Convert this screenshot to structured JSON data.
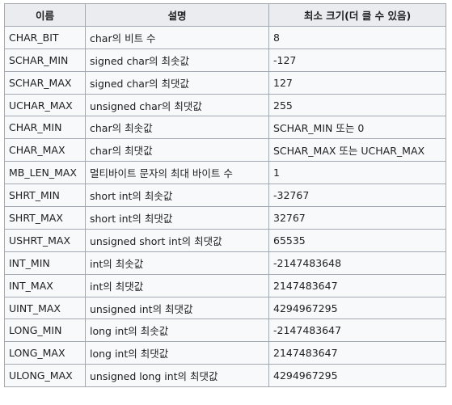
{
  "table": {
    "headers": [
      "이름",
      "설명",
      "최소 크기(더 클 수 있음)"
    ],
    "rows": [
      [
        "CHAR_BIT",
        "char의 비트 수",
        "8"
      ],
      [
        "SCHAR_MIN",
        "signed char의 최솟값",
        "-127"
      ],
      [
        "SCHAR_MAX",
        "signed char의 최댓값",
        "127"
      ],
      [
        "UCHAR_MAX",
        "unsigned char의 최댓값",
        "255"
      ],
      [
        "CHAR_MIN",
        "char의 최솟값",
        "SCHAR_MIN 또는 0"
      ],
      [
        "CHAR_MAX",
        "char의 최댓값",
        "SCHAR_MAX 또는 UCHAR_MAX"
      ],
      [
        "MB_LEN_MAX",
        "멀티바이트 문자의 최대 바이트 수",
        "1"
      ],
      [
        "SHRT_MIN",
        "short int의 최솟값",
        "-32767"
      ],
      [
        "SHRT_MAX",
        "short int의 최댓값",
        "32767"
      ],
      [
        "USHRT_MAX",
        "unsigned short int의 최댓값",
        "65535"
      ],
      [
        "INT_MIN",
        "int의 최솟값",
        "-2147483648"
      ],
      [
        "INT_MAX",
        "int의 최댓값",
        "2147483647"
      ],
      [
        "UINT_MAX",
        "unsigned int의 최댓값",
        "4294967295"
      ],
      [
        "LONG_MIN",
        "long int의 최솟값",
        "-2147483647"
      ],
      [
        "LONG_MAX",
        "long int의 최댓값",
        "2147483647"
      ],
      [
        "ULONG_MAX",
        "unsigned long int의 최댓값",
        "4294967295"
      ]
    ]
  }
}
